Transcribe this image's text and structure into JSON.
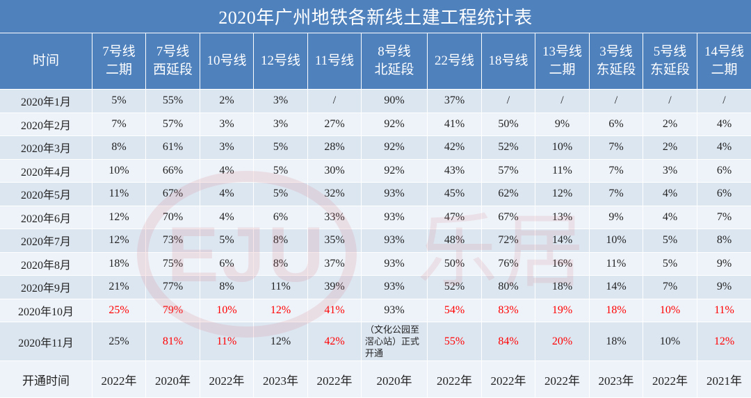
{
  "chart_data": {
    "type": "table",
    "title": "2020年广州地铁各新线土建工程统计表",
    "columns": [
      [
        "时间"
      ],
      [
        "7号线",
        "二期"
      ],
      [
        "7号线",
        "西延段"
      ],
      [
        "10号线"
      ],
      [
        "12号线"
      ],
      [
        "11号线"
      ],
      [
        "8号线",
        "北延段"
      ],
      [
        "22号线"
      ],
      [
        "18号线"
      ],
      [
        "13号线",
        "二期"
      ],
      [
        "3号线",
        "东延段"
      ],
      [
        "5号线",
        "东延段"
      ],
      [
        "14号线",
        "二期"
      ]
    ],
    "rows": [
      {
        "label": "2020年1月",
        "values": [
          "5%",
          "55%",
          "2%",
          "3%",
          "/",
          "90%",
          "37%",
          "/",
          "/",
          "/",
          "/",
          "/"
        ],
        "red": []
      },
      {
        "label": "2020年2月",
        "values": [
          "7%",
          "57%",
          "3%",
          "3%",
          "27%",
          "92%",
          "41%",
          "50%",
          "9%",
          "6%",
          "2%",
          "4%"
        ],
        "red": []
      },
      {
        "label": "2020年3月",
        "values": [
          "8%",
          "61%",
          "3%",
          "5%",
          "28%",
          "92%",
          "42%",
          "52%",
          "10%",
          "7%",
          "2%",
          "4%"
        ],
        "red": []
      },
      {
        "label": "2020年4月",
        "values": [
          "10%",
          "66%",
          "4%",
          "5%",
          "30%",
          "92%",
          "43%",
          "57%",
          "11%",
          "7%",
          "3%",
          "6%"
        ],
        "red": []
      },
      {
        "label": "2020年5月",
        "values": [
          "11%",
          "67%",
          "4%",
          "5%",
          "32%",
          "93%",
          "45%",
          "62%",
          "12%",
          "7%",
          "4%",
          "6%"
        ],
        "red": []
      },
      {
        "label": "2020年6月",
        "values": [
          "12%",
          "70%",
          "4%",
          "6%",
          "33%",
          "93%",
          "47%",
          "67%",
          "13%",
          "9%",
          "4%",
          "7%"
        ],
        "red": []
      },
      {
        "label": "2020年7月",
        "values": [
          "12%",
          "73%",
          "5%",
          "8%",
          "35%",
          "93%",
          "48%",
          "72%",
          "14%",
          "10%",
          "5%",
          "8%"
        ],
        "red": []
      },
      {
        "label": "2020年8月",
        "values": [
          "18%",
          "75%",
          "6%",
          "8%",
          "37%",
          "93%",
          "50%",
          "76%",
          "16%",
          "11%",
          "5%",
          "9%"
        ],
        "red": []
      },
      {
        "label": "2020年9月",
        "values": [
          "21%",
          "77%",
          "8%",
          "11%",
          "39%",
          "93%",
          "52%",
          "80%",
          "18%",
          "14%",
          "7%",
          "9%"
        ],
        "red": []
      },
      {
        "label": "2020年10月",
        "values": [
          "25%",
          "79%",
          "10%",
          "12%",
          "41%",
          "93%",
          "54%",
          "83%",
          "19%",
          "18%",
          "10%",
          "11%"
        ],
        "red": [
          0,
          1,
          2,
          3,
          4,
          6,
          7,
          8,
          9,
          10,
          11
        ]
      },
      {
        "label": "2020年11月",
        "values": [
          "25%",
          "81%",
          "11%",
          "12%",
          "42%",
          "（文化公园至滘心站）正式开通",
          "55%",
          "84%",
          "20%",
          "18%",
          "10%",
          "12%"
        ],
        "red": [
          1,
          2,
          4,
          6,
          7,
          8,
          11
        ]
      }
    ],
    "opening": {
      "label": "开通时间",
      "values": [
        "2022年",
        "2020年",
        "2022年",
        "2023年",
        "2022年",
        "2020年",
        "2022年",
        "2022年",
        "2022年",
        "2023年",
        "2022年",
        "2021年"
      ]
    }
  },
  "colors": {
    "header_bg": "#4F81BD",
    "header_text": "#FFFFFF",
    "row_bg_a": "#DCE6F1",
    "row_bg_b": "#EEF3F9",
    "text": "#222222",
    "highlight": "#FF0000"
  },
  "watermark": {
    "logo": "EJU",
    "name": "乐居"
  }
}
